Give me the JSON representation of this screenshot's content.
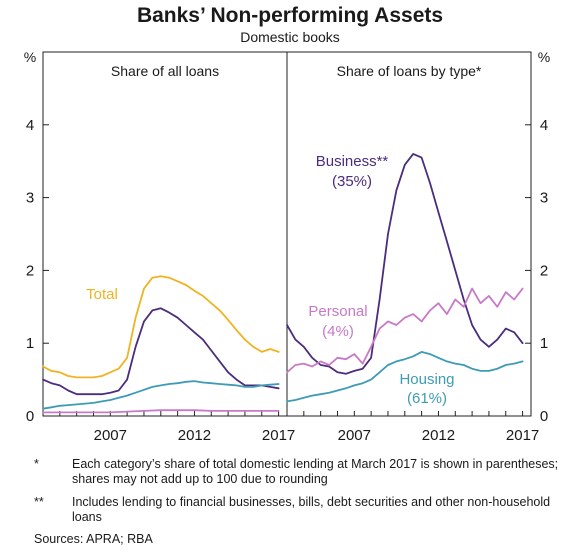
{
  "chart_data": {
    "type": "line",
    "title": "Banks’ Non-performing Assets",
    "subtitle": "Domestic books",
    "y_unit": "%",
    "ylim": [
      0,
      5
    ],
    "yticks": [
      0,
      1,
      2,
      3,
      4
    ],
    "xlim": [
      2003.0,
      2017.5
    ],
    "xticks": [
      2007,
      2012,
      2017
    ],
    "grid": false,
    "panels": [
      {
        "title": "Share of all loans",
        "series": [
          {
            "name": "Total",
            "color": "#F0B323",
            "x": [
              2003.0,
              2003.5,
              2004.0,
              2004.5,
              2005.0,
              2005.5,
              2006.0,
              2006.5,
              2007.0,
              2007.5,
              2008.0,
              2008.5,
              2009.0,
              2009.5,
              2010.0,
              2010.5,
              2011.0,
              2011.5,
              2012.0,
              2012.5,
              2013.0,
              2013.5,
              2014.0,
              2014.5,
              2015.0,
              2015.5,
              2016.0,
              2016.5,
              2017.0
            ],
            "values": [
              0.68,
              0.62,
              0.6,
              0.55,
              0.53,
              0.53,
              0.53,
              0.55,
              0.6,
              0.65,
              0.8,
              1.35,
              1.75,
              1.9,
              1.92,
              1.9,
              1.85,
              1.8,
              1.72,
              1.65,
              1.55,
              1.45,
              1.32,
              1.18,
              1.05,
              0.95,
              0.88,
              0.92,
              0.88
            ]
          },
          {
            "name": "",
            "color": "#4B2C7E",
            "x": [
              2003.0,
              2003.5,
              2004.0,
              2004.5,
              2005.0,
              2005.5,
              2006.0,
              2006.5,
              2007.0,
              2007.5,
              2008.0,
              2008.5,
              2009.0,
              2009.5,
              2010.0,
              2010.5,
              2011.0,
              2011.5,
              2012.0,
              2012.5,
              2013.0,
              2013.5,
              2014.0,
              2014.5,
              2015.0,
              2015.5,
              2016.0,
              2016.5,
              2017.0
            ],
            "values": [
              0.5,
              0.45,
              0.42,
              0.35,
              0.3,
              0.3,
              0.3,
              0.3,
              0.32,
              0.35,
              0.5,
              0.95,
              1.3,
              1.45,
              1.48,
              1.42,
              1.35,
              1.25,
              1.15,
              1.05,
              0.9,
              0.75,
              0.6,
              0.5,
              0.42,
              0.42,
              0.42,
              0.4,
              0.38
            ]
          },
          {
            "name": "",
            "color": "#3E9BB5",
            "x": [
              2003.0,
              2003.5,
              2004.0,
              2004.5,
              2005.0,
              2005.5,
              2006.0,
              2006.5,
              2007.0,
              2007.5,
              2008.0,
              2008.5,
              2009.0,
              2009.5,
              2010.0,
              2010.5,
              2011.0,
              2011.5,
              2012.0,
              2012.5,
              2013.0,
              2013.5,
              2014.0,
              2014.5,
              2015.0,
              2015.5,
              2016.0,
              2016.5,
              2017.0
            ],
            "values": [
              0.1,
              0.12,
              0.14,
              0.15,
              0.16,
              0.17,
              0.18,
              0.2,
              0.22,
              0.25,
              0.28,
              0.32,
              0.36,
              0.4,
              0.42,
              0.44,
              0.45,
              0.47,
              0.48,
              0.46,
              0.45,
              0.44,
              0.43,
              0.42,
              0.4,
              0.4,
              0.42,
              0.43,
              0.44
            ]
          },
          {
            "name": "",
            "color": "#C879C8",
            "x": [
              2003.0,
              2004.0,
              2005.0,
              2006.0,
              2007.0,
              2008.0,
              2009.0,
              2010.0,
              2011.0,
              2012.0,
              2013.0,
              2014.0,
              2015.0,
              2016.0,
              2017.0
            ],
            "values": [
              0.05,
              0.05,
              0.05,
              0.05,
              0.05,
              0.06,
              0.07,
              0.08,
              0.08,
              0.08,
              0.07,
              0.07,
              0.07,
              0.07,
              0.07
            ]
          }
        ]
      },
      {
        "title": "Share of loans by type*",
        "series": [
          {
            "name": "Business**",
            "share": "(35%)",
            "color": "#4B2C7E",
            "x": [
              2003.0,
              2003.5,
              2004.0,
              2004.5,
              2005.0,
              2005.5,
              2006.0,
              2006.5,
              2007.0,
              2007.5,
              2008.0,
              2008.5,
              2009.0,
              2009.5,
              2010.0,
              2010.5,
              2011.0,
              2011.5,
              2012.0,
              2012.5,
              2013.0,
              2013.5,
              2014.0,
              2014.5,
              2015.0,
              2015.5,
              2016.0,
              2016.5,
              2017.0
            ],
            "values": [
              1.25,
              1.05,
              0.95,
              0.8,
              0.7,
              0.68,
              0.6,
              0.58,
              0.62,
              0.65,
              0.8,
              1.6,
              2.5,
              3.1,
              3.45,
              3.6,
              3.55,
              3.2,
              2.8,
              2.4,
              2.0,
              1.6,
              1.25,
              1.05,
              0.95,
              1.05,
              1.2,
              1.15,
              1.0
            ]
          },
          {
            "name": "Personal",
            "share": "(4%)",
            "color": "#C879C8",
            "x": [
              2003.0,
              2003.5,
              2004.0,
              2004.5,
              2005.0,
              2005.5,
              2006.0,
              2006.5,
              2007.0,
              2007.5,
              2008.0,
              2008.5,
              2009.0,
              2009.5,
              2010.0,
              2010.5,
              2011.0,
              2011.5,
              2012.0,
              2012.5,
              2013.0,
              2013.5,
              2014.0,
              2014.5,
              2015.0,
              2015.5,
              2016.0,
              2016.5,
              2017.0
            ],
            "values": [
              0.6,
              0.7,
              0.72,
              0.68,
              0.75,
              0.7,
              0.8,
              0.78,
              0.85,
              0.72,
              0.95,
              1.2,
              1.3,
              1.25,
              1.35,
              1.4,
              1.3,
              1.45,
              1.55,
              1.4,
              1.6,
              1.5,
              1.75,
              1.55,
              1.65,
              1.5,
              1.7,
              1.6,
              1.75
            ]
          },
          {
            "name": "Housing",
            "share": "(61%)",
            "color": "#3E9BB5",
            "x": [
              2003.0,
              2003.5,
              2004.0,
              2004.5,
              2005.0,
              2005.5,
              2006.0,
              2006.5,
              2007.0,
              2007.5,
              2008.0,
              2008.5,
              2009.0,
              2009.5,
              2010.0,
              2010.5,
              2011.0,
              2011.5,
              2012.0,
              2012.5,
              2013.0,
              2013.5,
              2014.0,
              2014.5,
              2015.0,
              2015.5,
              2016.0,
              2016.5,
              2017.0
            ],
            "values": [
              0.2,
              0.22,
              0.25,
              0.28,
              0.3,
              0.32,
              0.35,
              0.38,
              0.42,
              0.45,
              0.5,
              0.6,
              0.7,
              0.75,
              0.78,
              0.82,
              0.88,
              0.85,
              0.8,
              0.75,
              0.72,
              0.7,
              0.65,
              0.62,
              0.62,
              0.65,
              0.7,
              0.72,
              0.75
            ]
          }
        ]
      }
    ]
  },
  "footnotes": [
    {
      "mark": "*",
      "text": "Each category’s share of total domestic lending at March 2017 is shown in parentheses; shares may not add up to 100 due to rounding"
    },
    {
      "mark": "**",
      "text": "Includes lending to financial businesses, bills, debt securities and other non-household loans"
    }
  ],
  "sources": "Sources: APRA; RBA"
}
